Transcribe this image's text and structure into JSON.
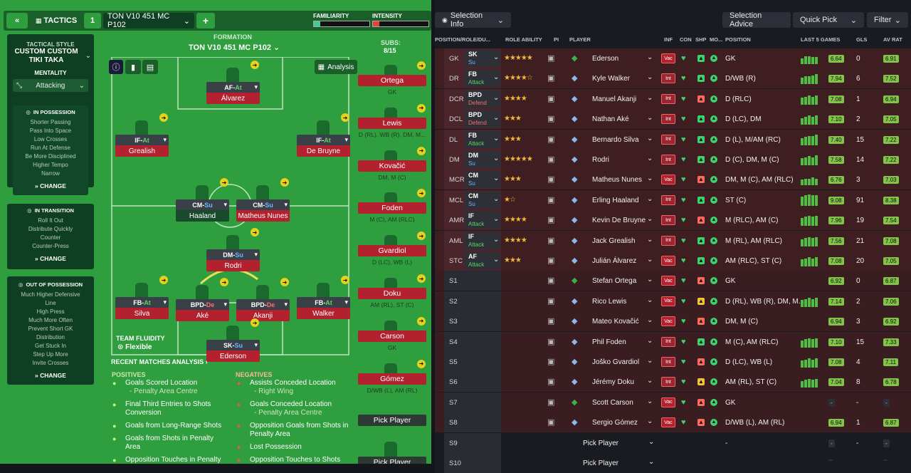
{
  "topbar": {
    "back": "«",
    "tactics": "TACTICS",
    "num": "1",
    "tactic_name": "TON V10 451  MC P102",
    "add": "+",
    "familiarity": "FAMILIARITY",
    "intensity": "INTENSITY"
  },
  "style": {
    "heading": "TACTICAL STYLE",
    "name": "CUSTOM CUSTOM TIKI TAKA",
    "mentality_label": "MENTALITY",
    "mentality": "Attacking",
    "in_possession": "IN POSSESSION",
    "ip": [
      "Shorter Passing",
      "Pass Into Space",
      "Low Crosses",
      "Run At Defense",
      "Be More Disciplined",
      "Higher Tempo",
      "Narrow"
    ],
    "in_transition": "IN TRANSITION",
    "it": [
      "Roll It Out",
      "Distribute Quickly",
      "Counter",
      "Counter-Press"
    ],
    "out_possession": "OUT OF POSSESSION",
    "op": [
      "Much Higher Defensive",
      "Line",
      "High Press",
      "Much More Often",
      "Prevent Short GK",
      "Distribution",
      "Get Stuck In",
      "Step Up More",
      "Invite Crosses"
    ],
    "change": "CHANGE"
  },
  "formation": {
    "label": "FORMATION",
    "name": "TON V10 451  MC P102",
    "analysis": "Analysis",
    "fluidity_label": "TEAM FLUIDITY",
    "fluidity": "Flexible"
  },
  "pitch": [
    {
      "role": "AF",
      "duty": "At",
      "name": "Álvarez",
      "dk": "a",
      "x": 143,
      "y": 17
    },
    {
      "role": "IF",
      "duty": "At",
      "name": "Grealish",
      "dk": "a",
      "x": 15,
      "y": 91
    },
    {
      "role": "IF",
      "duty": "At",
      "name": "De Bruyne",
      "dk": "a",
      "x": 270,
      "y": 91
    },
    {
      "role": "CM",
      "duty": "Su",
      "name": "Haaland",
      "dk": "s",
      "x": 100,
      "y": 182,
      "dark": true
    },
    {
      "role": "CM",
      "duty": "Su",
      "name": "Matheus Nunes",
      "dk": "s",
      "x": 185,
      "y": 182
    },
    {
      "role": "DM",
      "duty": "Su",
      "name": "Rodri",
      "dk": "s",
      "x": 143,
      "y": 252
    },
    {
      "role": "FB",
      "duty": "At",
      "name": "Silva",
      "dk": "a",
      "x": 15,
      "y": 319
    },
    {
      "role": "BPD",
      "duty": "De",
      "name": "Aké",
      "dk": "d",
      "x": 100,
      "y": 322
    },
    {
      "role": "BPD",
      "duty": "De",
      "name": "Akanji",
      "dk": "d",
      "x": 185,
      "y": 322
    },
    {
      "role": "FB",
      "duty": "At",
      "name": "Walker",
      "dk": "a",
      "x": 270,
      "y": 319
    },
    {
      "role": "SK",
      "duty": "Su",
      "name": "Ederson",
      "dk": "s",
      "x": 143,
      "y": 379
    }
  ],
  "subs": {
    "label": "SUBS:",
    "count": "8/15",
    "items": [
      {
        "name": "Ortega",
        "pos": "GK"
      },
      {
        "name": "Lewis",
        "pos": "D (RL), WB (R), DM, M..."
      },
      {
        "name": "Kovačić",
        "pos": "DM, M (C)"
      },
      {
        "name": "Foden",
        "pos": "M (C), AM (RLC)"
      },
      {
        "name": "Gvardiol",
        "pos": "D (LC), WB (L)"
      },
      {
        "name": "Doku",
        "pos": "AM (RL), ST (C)"
      },
      {
        "name": "Carson",
        "pos": "GK"
      },
      {
        "name": "Gómez",
        "pos": "D/WB (L), AM (RL)"
      }
    ],
    "pick": "Pick Player"
  },
  "analysis": {
    "heading": "RECENT MATCHES ANALYSIS ›",
    "positives": "POSITIVES",
    "negatives": "NEGATIVES",
    "pos": [
      {
        "t": "Goals Scored Location",
        "s": "- Penalty Area Centre"
      },
      {
        "t": "Final Third Entries to Shots Conversion",
        "s": ""
      },
      {
        "t": "Goals from Long-Range Shots",
        "s": ""
      },
      {
        "t": "Goals from Shots in Penalty Area",
        "s": ""
      },
      {
        "t": "Opposition Touches in Penalty Area",
        "s": ""
      }
    ],
    "neg": [
      {
        "t": "Assists Conceded Location",
        "s": "- Right Wing"
      },
      {
        "t": "Goals Conceded Location",
        "s": "- Penalty Area Centre"
      },
      {
        "t": "Opposition Goals from Shots in Penalty Area",
        "s": ""
      },
      {
        "t": "Lost Possession",
        "s": ""
      },
      {
        "t": "Opposition Touches to Shots",
        "s": ""
      }
    ]
  },
  "right": {
    "selection_info": "Selection Info",
    "selection_advice": "Selection Advice",
    "quick_pick": "Quick Pick",
    "filter": "Filter",
    "cols": [
      "POSITION/ROLE/DU...",
      "ROLE ABILITY",
      "PI",
      "PLAYER",
      "INF",
      "CON",
      "SHP",
      "MO...",
      "POSITION",
      "LAST 5 GAMES",
      "GLS",
      "AV RAT"
    ],
    "rows": [
      {
        "pos": "GK",
        "role": "SK",
        "duty": "Su",
        "stars": "★★★★★",
        "name": "Ederson",
        "inf": "Vac",
        "shp": "g",
        "position": "GK",
        "bars": [
          5,
          7,
          7,
          6,
          6
        ],
        "rat": "6.64",
        "gls": "0",
        "av": "6.91",
        "gk": true
      },
      {
        "pos": "DR",
        "role": "FB",
        "duty": "Attack",
        "stars": "★★★★☆",
        "name": "Kyle Walker",
        "inf": "Int",
        "shp": "g",
        "position": "D/WB (R)",
        "bars": [
          6,
          7,
          7,
          8,
          9
        ],
        "rat": "7.94",
        "gls": "6",
        "av": "7.52"
      },
      {
        "pos": "DCR",
        "role": "BPD",
        "duty": "Defend",
        "stars": "★★★★",
        "name": "Manuel Akanji",
        "inf": "Int",
        "shp": "r",
        "position": "D (RLC)",
        "bars": [
          6,
          7,
          8,
          7,
          8
        ],
        "rat": "7.08",
        "gls": "1",
        "av": "6.94"
      },
      {
        "pos": "DCL",
        "role": "BPD",
        "duty": "Defend",
        "stars": "★★★",
        "name": "Nathan Aké",
        "inf": "Int",
        "shp": "g",
        "position": "D (LC), DM",
        "bars": [
          6,
          7,
          8,
          7,
          8
        ],
        "rat": "7.10",
        "gls": "2",
        "av": "7.05"
      },
      {
        "pos": "DL",
        "role": "FB",
        "duty": "Attack",
        "stars": "★★★",
        "name": "Bernardo Silva",
        "inf": "Int",
        "shp": "g",
        "position": "D (L), M/AM (RC)",
        "bars": [
          6,
          7,
          8,
          8,
          9
        ],
        "rat": "7.40",
        "gls": "15",
        "av": "7.22"
      },
      {
        "pos": "DM",
        "role": "DM",
        "duty": "Su",
        "stars": "★★★★★",
        "name": "Rodri",
        "inf": "Int",
        "shp": "g",
        "position": "D (C), DM, M (C)",
        "bars": [
          6,
          7,
          8,
          7,
          9
        ],
        "rat": "7.58",
        "gls": "14",
        "av": "7.22"
      },
      {
        "pos": "MCR",
        "role": "CM",
        "duty": "Su",
        "stars": "★★★",
        "name": "Matheus Nunes",
        "inf": "Vac",
        "shp": "r",
        "position": "DM, M (C), AM (RLC)",
        "bars": [
          5,
          6,
          6,
          7,
          6
        ],
        "rat": "6.76",
        "gls": "3",
        "av": "7.03"
      },
      {
        "pos": "MCL",
        "role": "CM",
        "duty": "Su",
        "stars": "★☆",
        "name": "Erling Haaland",
        "inf": "Int",
        "shp": "g",
        "position": "ST (C)",
        "bars": [
          8,
          9,
          10,
          9,
          9
        ],
        "rat": "9.08",
        "gls": "91",
        "av": "8.38"
      },
      {
        "pos": "AMR",
        "role": "IF",
        "duty": "Attack",
        "stars": "★★★★",
        "name": "Kevin De Bruyne",
        "inf": "Int",
        "shp": "r",
        "position": "M (RLC), AM (C)",
        "bars": [
          7,
          8,
          9,
          8,
          9
        ],
        "rat": "7.96",
        "gls": "19",
        "av": "7.54"
      },
      {
        "pos": "AML",
        "role": "IF",
        "duty": "Attack",
        "stars": "★★★★",
        "name": "Jack Grealish",
        "inf": "Int",
        "shp": "g",
        "position": "M (RL), AM (RLC)",
        "bars": [
          6,
          7,
          8,
          7,
          8
        ],
        "rat": "7.56",
        "gls": "21",
        "av": "7.08"
      },
      {
        "pos": "STC",
        "role": "AF",
        "duty": "Attack",
        "stars": "★★★",
        "name": "Julián Álvarez",
        "inf": "Vac",
        "shp": "g",
        "position": "AM (RLC), ST (C)",
        "bars": [
          6,
          7,
          8,
          7,
          8
        ],
        "rat": "7.08",
        "gls": "20",
        "av": "7.05"
      },
      {
        "pos": "S1",
        "name": "Stefan Ortega",
        "inf": "Vac",
        "shp": "r",
        "position": "GK",
        "bars": [],
        "rat": "6.92",
        "gls": "0",
        "av": "6.87",
        "gk": true
      },
      {
        "pos": "S2",
        "name": "Rico Lewis",
        "inf": "Vac",
        "shp": "y",
        "position": "D (RL), WB (R), DM, M...",
        "bars": [
          6,
          7,
          8,
          7,
          8
        ],
        "rat": "7.14",
        "gls": "2",
        "av": "7.06"
      },
      {
        "pos": "S3",
        "name": "Mateo Kovačić",
        "inf": "Vac",
        "shp": "r",
        "position": "DM, M (C)",
        "bars": [],
        "rat": "6.94",
        "gls": "3",
        "av": "6.92"
      },
      {
        "pos": "S4",
        "name": "Phil Foden",
        "inf": "Int",
        "shp": "g",
        "position": "M (C), AM (RLC)",
        "bars": [
          6,
          7,
          8,
          7,
          8
        ],
        "rat": "7.10",
        "gls": "15",
        "av": "7.33"
      },
      {
        "pos": "S5",
        "name": "Joško Gvardiol",
        "inf": "Int",
        "shp": "r",
        "position": "D (LC), WB (L)",
        "bars": [
          6,
          7,
          8,
          7,
          8
        ],
        "rat": "7.08",
        "gls": "4",
        "av": "7.11"
      },
      {
        "pos": "S6",
        "name": "Jérémy Doku",
        "inf": "Int",
        "shp": "y",
        "position": "AM (RL), ST (C)",
        "bars": [
          6,
          7,
          8,
          7,
          8
        ],
        "rat": "7.04",
        "gls": "8",
        "av": "6.78"
      },
      {
        "pos": "S7",
        "name": "Scott Carson",
        "inf": "Vac",
        "shp": "r",
        "position": "GK",
        "bars": [],
        "rat": "-",
        "gls": "-",
        "av": "-",
        "gk": true
      },
      {
        "pos": "S8",
        "name": "Sergio Gómez",
        "inf": "Vac",
        "shp": "r",
        "position": "D/WB (L), AM (RL)",
        "bars": [],
        "rat": "6.94",
        "gls": "1",
        "av": "6.87"
      },
      {
        "pos": "S9",
        "name": "Pick Player",
        "pick": true,
        "position": "-",
        "rat": "-",
        "gls": "-",
        "av": "-"
      },
      {
        "pos": "S10",
        "name": "Pick Player",
        "pick": true,
        "position": "",
        "rat": "",
        "gls": "",
        "av": ""
      }
    ]
  }
}
